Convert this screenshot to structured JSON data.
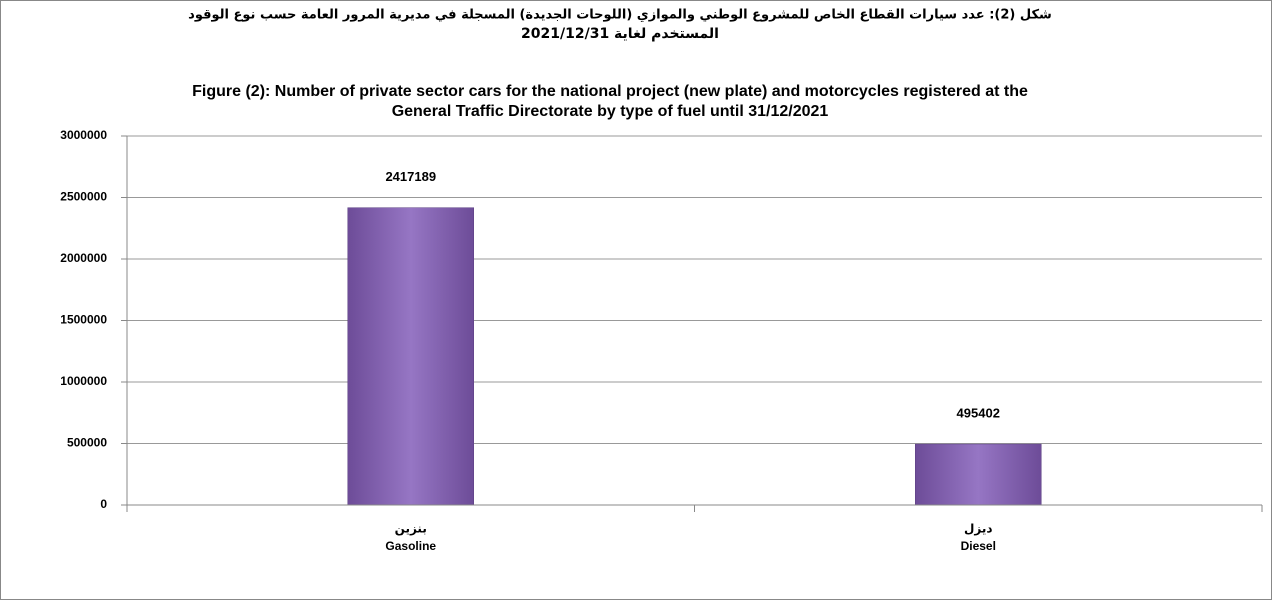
{
  "chart_data": {
    "type": "bar",
    "title_ar": [
      "شكل (2): عدد سيارات القطاع الخاص للمشروع الوطني والموازي (اللوحات الجديدة) المسجلة  في مديرية المرور العامة حسب نوع الوقود",
      "المستخدم لغاية 2021/12/31"
    ],
    "title": [
      "Figure (2):  Number of private sector cars for the national project (new plate) and motorcycles registered at the",
      "General Traffic Directorate by type of  fuel until 31/12/2021"
    ],
    "categories": [
      [
        "بنزين",
        "Gasoline"
      ],
      [
        "ديزل",
        "Diesel"
      ]
    ],
    "values": [
      2417189,
      495402
    ],
    "color": "#8460b4",
    "ylim": [
      0,
      3000000
    ],
    "yticks": [
      0,
      500000,
      1000000,
      1500000,
      2000000,
      2500000,
      3000000
    ],
    "grid": true
  }
}
